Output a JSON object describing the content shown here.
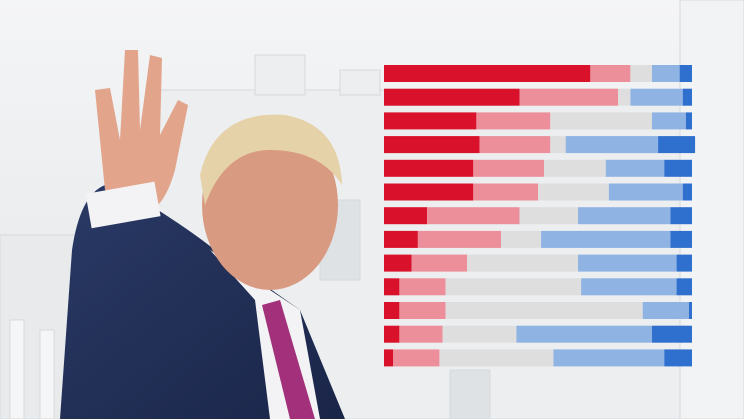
{
  "chart_data": {
    "type": "bar",
    "orientation": "horizontal",
    "stacked": true,
    "categories": [
      null,
      null,
      null,
      null,
      null,
      null,
      null,
      null,
      null,
      null,
      null,
      null,
      null
    ],
    "xlim": [
      0,
      100
    ],
    "series": [
      {
        "color": "#d9112a",
        "values": [
          67,
          44,
          30,
          31,
          29,
          29,
          14,
          11,
          9,
          5,
          5,
          5,
          3
        ]
      },
      {
        "color": "#ec8f9b",
        "values": [
          13,
          32,
          24,
          23,
          23,
          21,
          30,
          27,
          18,
          15,
          15,
          14,
          15
        ]
      },
      {
        "color": "#dedede",
        "values": [
          7,
          4,
          33,
          5,
          20,
          23,
          19,
          13,
          36,
          44,
          64,
          24,
          37
        ]
      },
      {
        "color": "#8fb3e3",
        "values": [
          9,
          17,
          11,
          30,
          19,
          24,
          30,
          42,
          32,
          31,
          15,
          44,
          36
        ]
      },
      {
        "color": "#2f6fce",
        "values": [
          4,
          3,
          2,
          12,
          9,
          3,
          7,
          7,
          5,
          5,
          1,
          13,
          9
        ]
      }
    ]
  }
}
